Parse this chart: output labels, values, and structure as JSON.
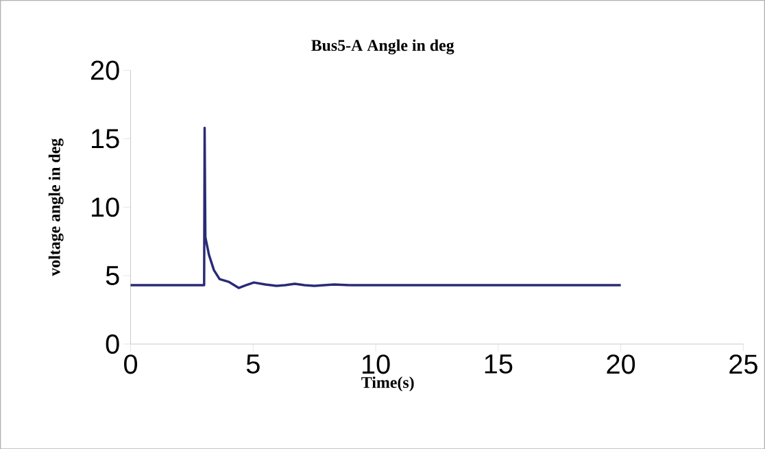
{
  "chart_data": {
    "type": "line",
    "title": "Bus5-A  Angle in deg",
    "xlabel": "Time(s)",
    "ylabel": "voltage angle in deg",
    "x": [
      0,
      3.0,
      3.02,
      3.05,
      3.2,
      3.4,
      3.63,
      4.0,
      4.41,
      4.7,
      5.03,
      5.5,
      5.95,
      6.3,
      6.7,
      7.1,
      7.5,
      8.3,
      9.0,
      10,
      12,
      15,
      20
    ],
    "series": [
      {
        "color": "#2a2a78",
        "values": [
          4.3,
          4.3,
          15.8,
          7.8,
          6.5,
          5.4,
          4.75,
          4.55,
          4.1,
          4.3,
          4.5,
          4.35,
          4.25,
          4.3,
          4.4,
          4.3,
          4.25,
          4.35,
          4.3,
          4.3,
          4.3,
          4.3,
          4.3
        ]
      }
    ],
    "xlim": [
      0,
      25
    ],
    "ylim": [
      0,
      20
    ],
    "xticks": [
      0,
      5,
      10,
      15,
      20,
      25
    ],
    "yticks": [
      0,
      5,
      10,
      15,
      20
    ],
    "grid": false,
    "marker": "none",
    "line_style": "solid"
  }
}
